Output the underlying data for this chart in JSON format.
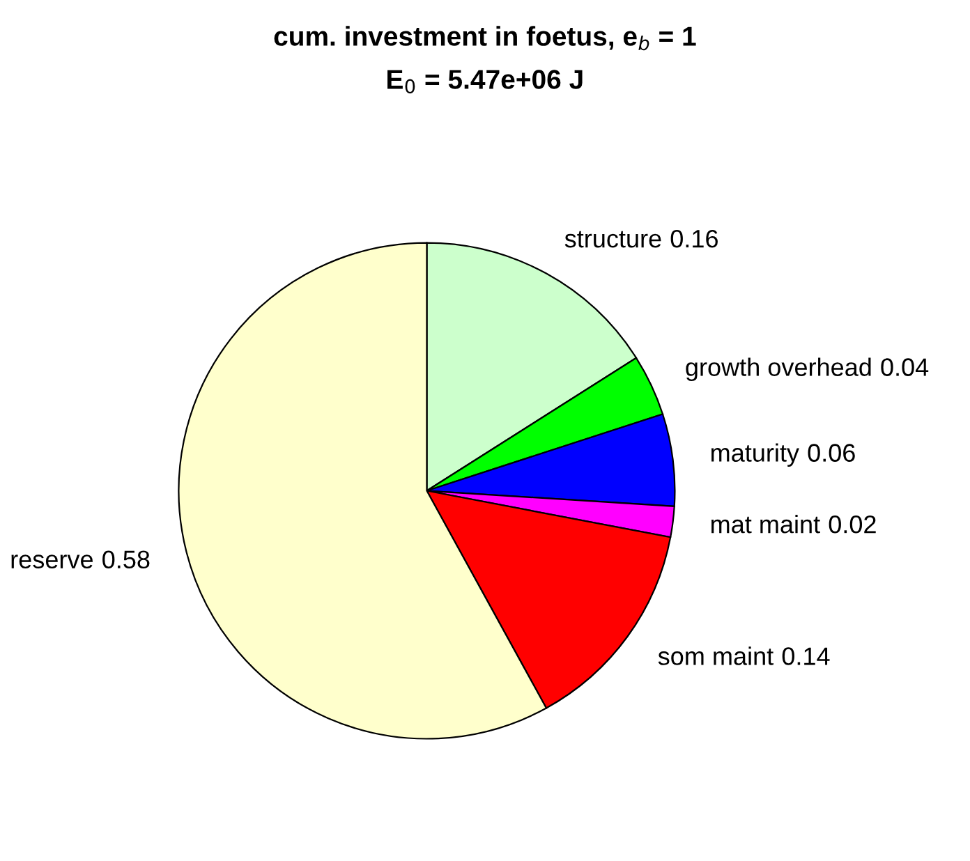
{
  "chart_data": {
    "type": "pie",
    "title": "cum. investment in foetus, e$_{b}$ = 1",
    "subtitle": "E$_{0}$ = 5.47e+06 J",
    "categories": [
      "structure",
      "growth overhead",
      "maturity",
      "mat maint",
      "som maint",
      "reserve"
    ],
    "values": [
      0.16,
      0.04,
      0.06,
      0.02,
      0.14,
      0.58
    ],
    "colors": [
      "#ccffcc",
      "#00ff00",
      "#0000ff",
      "#ff00ff",
      "#ff0000",
      "#ffffcc"
    ],
    "data_labels": true,
    "legend": false
  }
}
